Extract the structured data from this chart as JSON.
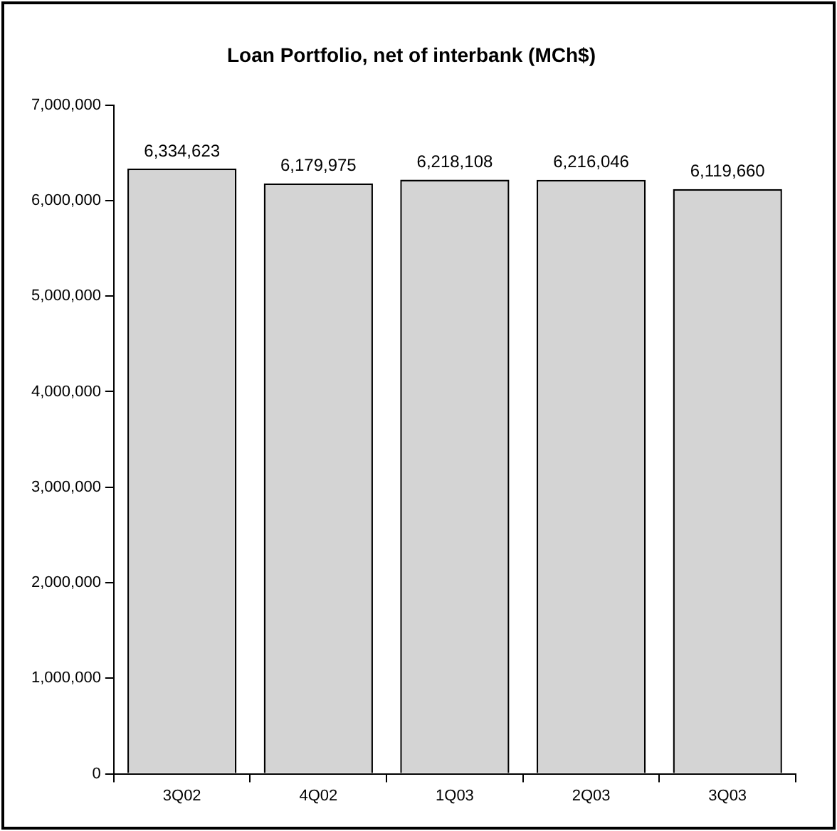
{
  "chart_data": {
    "type": "bar",
    "title": "Loan Portfolio, net of interbank (MCh$)",
    "categories": [
      "3Q02",
      "4Q02",
      "1Q03",
      "2Q03",
      "3Q03"
    ],
    "values": [
      6334623,
      6179975,
      6218108,
      6216046,
      6119660
    ],
    "value_labels": [
      "6,334,623",
      "6,179,975",
      "6,218,108",
      "6,216,046",
      "6,119,660"
    ],
    "color": "#d4d4d4",
    "ylim": [
      0,
      7000000
    ],
    "yticks": [
      {
        "value": 0,
        "label": "0"
      },
      {
        "value": 1000000,
        "label": "1,000,000"
      },
      {
        "value": 2000000,
        "label": "2,000,000"
      },
      {
        "value": 3000000,
        "label": "3,000,000"
      },
      {
        "value": 4000000,
        "label": "4,000,000"
      },
      {
        "value": 5000000,
        "label": "5,000,000"
      },
      {
        "value": 6000000,
        "label": "6,000,000"
      },
      {
        "value": 7000000,
        "label": "7,000,000"
      }
    ],
    "grid": false,
    "legend": false
  }
}
